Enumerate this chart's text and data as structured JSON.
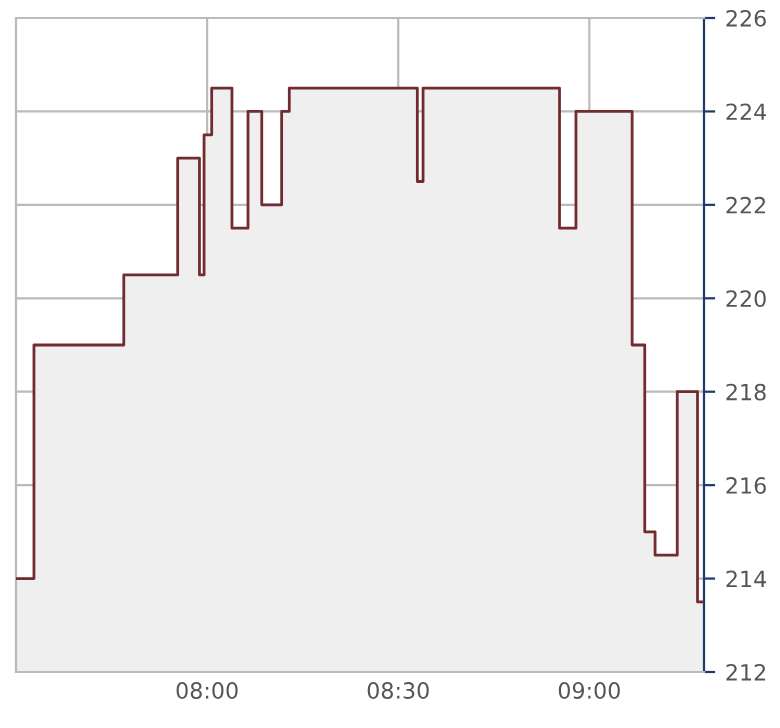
{
  "chart_data": {
    "type": "area",
    "x": [
      7.5,
      7.547,
      7.547,
      7.782,
      7.782,
      7.923,
      7.923,
      7.98,
      7.98,
      7.992,
      7.992,
      8.012,
      8.012,
      8.065,
      8.065,
      8.107,
      8.107,
      8.143,
      8.143,
      8.195,
      8.195,
      8.215,
      8.215,
      8.55,
      8.55,
      8.565,
      8.565,
      8.922,
      8.922,
      8.965,
      8.965,
      9.112,
      9.112,
      9.145,
      9.145,
      9.172,
      9.172,
      9.23,
      9.23,
      9.283,
      9.283,
      9.3
    ],
    "series": [
      {
        "color": "#722b2f",
        "values": [
          214,
          214,
          219,
          219,
          220.5,
          220.5,
          223,
          223,
          220.5,
          220.5,
          223.5,
          223.5,
          224.5,
          224.5,
          221.5,
          221.5,
          224,
          224,
          222,
          222,
          224,
          224,
          224.5,
          224.5,
          222.5,
          222.5,
          224.5,
          224.5,
          221.5,
          221.5,
          224,
          224,
          219,
          219,
          215,
          215,
          214.5,
          214.5,
          218,
          218,
          213.5,
          213.5
        ]
      }
    ],
    "xlim": [
      7.5,
      9.3
    ],
    "xticks": [
      {
        "value": 8,
        "label": "08:00"
      },
      {
        "value": 8.5,
        "label": "08:30"
      },
      {
        "value": 9,
        "label": "09:00"
      }
    ],
    "ylim": [
      212,
      226
    ],
    "yticks": [
      212,
      214,
      216,
      218,
      220,
      222,
      224,
      226
    ],
    "grid": true
  }
}
